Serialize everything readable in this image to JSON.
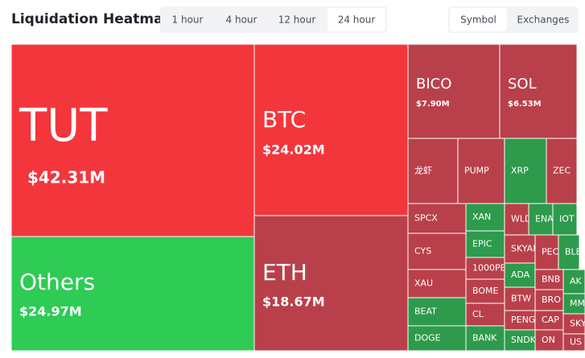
{
  "header": {
    "title": "Liquidation Heatmap",
    "time_tabs": [
      "1 hour",
      "4 hour",
      "12 hour",
      "24 hour"
    ],
    "selected_time_tab": 3,
    "view_tabs": [
      "Symbol",
      "Exchanges"
    ],
    "selected_view_tab": 0
  },
  "tiles": [
    {
      "label": "TUT",
      "value": "$42.31M",
      "color": "#f3363c"
    },
    {
      "label": "BTC",
      "value": "$24.02M",
      "color": "#f3363c"
    },
    {
      "label": "Others",
      "value": "$24.97M",
      "color": "#2ecb55"
    },
    {
      "label": "ETH",
      "value": "$18.67M",
      "color": "#b9404a"
    },
    {
      "label": "BICO",
      "value": "$7.90M",
      "color": "#b9404a"
    },
    {
      "label": "SOL",
      "value": "$6.53M",
      "color": "#b9404a"
    },
    {
      "label": "龙虾",
      "color": "#b9404a"
    },
    {
      "label": "PUMP",
      "color": "#b9404a"
    },
    {
      "label": "XRP",
      "color": "#2e9a4c"
    },
    {
      "label": "ZEC",
      "color": "#b9404a"
    },
    {
      "label": "SPCX",
      "color": "#b9404a"
    },
    {
      "label": "CYS",
      "color": "#b9404a"
    },
    {
      "label": "XAU",
      "color": "#b9404a"
    },
    {
      "label": "BEAT",
      "color": "#2e9a4c"
    },
    {
      "label": "DOGE",
      "color": "#2e9a4c"
    },
    {
      "label": "XAN",
      "color": "#2e9a4c"
    },
    {
      "label": "EPIC",
      "color": "#2e9a4c"
    },
    {
      "label": "1000PE",
      "color": "#b9404a"
    },
    {
      "label": "BOME",
      "color": "#b9404a"
    },
    {
      "label": "CL",
      "color": "#b9404a"
    },
    {
      "label": "BANK",
      "color": "#2e9a4c"
    },
    {
      "label": "WLD",
      "color": "#b9404a"
    },
    {
      "label": "SKYAI",
      "color": "#b9404a"
    },
    {
      "label": "ADA",
      "color": "#2e9a4c"
    },
    {
      "label": "BTW",
      "color": "#b9404a"
    },
    {
      "label": "PENG",
      "color": "#b9404a"
    },
    {
      "label": "SNDK",
      "color": "#2e9a4c"
    },
    {
      "label": "ENA",
      "color": "#2e9a4c"
    },
    {
      "label": "IOT",
      "color": "#2e9a4c"
    },
    {
      "label": "PEC",
      "color": "#b9404a"
    },
    {
      "label": "BLE",
      "color": "#2e9a4c"
    },
    {
      "label": "BNB",
      "color": "#b9404a"
    },
    {
      "label": "BRO",
      "color": "#b9404a"
    },
    {
      "label": "CAP",
      "color": "#b9404a"
    },
    {
      "label": "ON",
      "color": "#b9404a"
    },
    {
      "label": "AK",
      "color": "#2e9a4c"
    },
    {
      "label": "MM",
      "color": "#2e9a4c"
    },
    {
      "label": "SKY",
      "color": "#b9404a"
    },
    {
      "label": "US",
      "color": "#b9404a"
    }
  ]
}
